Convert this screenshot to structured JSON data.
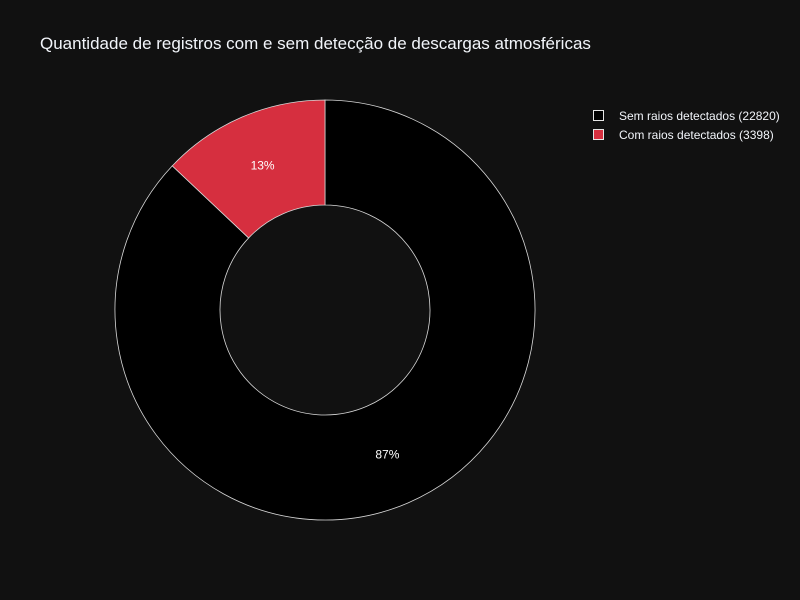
{
  "chart_data": {
    "type": "pie",
    "hole": true,
    "title": "Quantidade de registros com e sem detecção de descargas atmosféricas",
    "legend_position": "top-right",
    "slices": [
      {
        "label": "Sem raios detectados",
        "value": 22820,
        "legend_text": "Sem raios detectados (22820)",
        "percent_label": "87%",
        "color": "#000000"
      },
      {
        "label": "Com raios detectados",
        "value": 3398,
        "legend_text": "Com raios detectados (3398)",
        "percent_label": "13%",
        "color": "#d62f3f"
      }
    ]
  }
}
